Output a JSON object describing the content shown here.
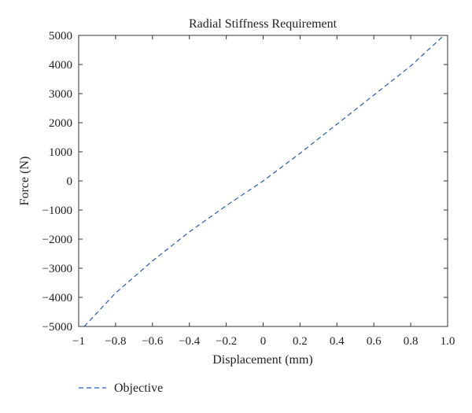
{
  "chart_data": {
    "type": "line",
    "title": "Radial Stiffness Requirement",
    "xlabel": "Displacement (mm)",
    "ylabel": "Force (N)",
    "xlim": [
      -1,
      1
    ],
    "ylim": [
      -5000,
      5000
    ],
    "xticks": [
      "−1",
      "−0.8",
      "−0.6",
      "−0.4",
      "−0.2",
      "0",
      "0.2",
      "0.4",
      "0.6",
      "0.8",
      "1.0"
    ],
    "xtick_values": [
      -1,
      -0.8,
      -0.6,
      -0.4,
      -0.2,
      0,
      0.2,
      0.4,
      0.6,
      0.8,
      1.0
    ],
    "yticks": [
      "5000",
      "4000",
      "3000",
      "2000",
      "1000",
      "0",
      "−1000",
      "−2000",
      "−3000",
      "−4000",
      "−5000"
    ],
    "ytick_values": [
      5000,
      4000,
      3000,
      2000,
      1000,
      0,
      -1000,
      -2000,
      -3000,
      -4000,
      -5000
    ],
    "grid": false,
    "legend_position": "bottom-left",
    "series": [
      {
        "name": "Objective",
        "style": "dashed",
        "color": "#1f5fbf",
        "x": [
          -0.97,
          -0.8,
          -0.6,
          -0.4,
          -0.2,
          0,
          0.2,
          0.4,
          0.6,
          0.8,
          0.98
        ],
        "y": [
          -5000,
          -3850,
          -2750,
          -1750,
          -850,
          0,
          950,
          1950,
          2950,
          3950,
          5000
        ]
      }
    ]
  }
}
